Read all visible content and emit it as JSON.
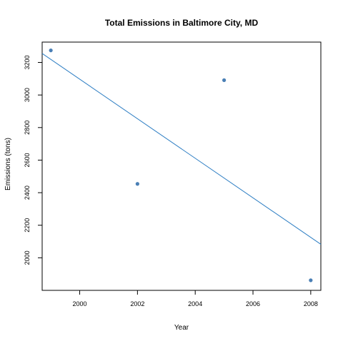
{
  "chart_data": {
    "type": "scatter",
    "title": "Total Emissions in Baltimore City, MD",
    "xlabel": "Year",
    "ylabel": "Emissions (tons)",
    "xlim": [
      1998.7,
      2008.35
    ],
    "ylim": [
      1800,
      3325
    ],
    "x_ticks": [
      2000,
      2002,
      2004,
      2006,
      2008
    ],
    "y_ticks": [
      2000,
      2200,
      2400,
      2600,
      2800,
      3000,
      3200
    ],
    "x_tick_labels": [
      "2000",
      "2002",
      "2004",
      "2006",
      "2008"
    ],
    "y_tick_labels": [
      "2000",
      "2200",
      "2400",
      "2600",
      "2800",
      "3000",
      "3200"
    ],
    "grid": false,
    "legend": "none",
    "series": [
      {
        "x": [
          1999,
          2002,
          2005,
          2008
        ],
        "y": [
          3274,
          2454,
          3091,
          1862
        ],
        "color": "#4a7fb5"
      }
    ],
    "regression_line": {
      "x": [
        1998.7,
        2008.35
      ],
      "y": [
        3255,
        2083
      ],
      "color": "#2f7fc4"
    }
  }
}
